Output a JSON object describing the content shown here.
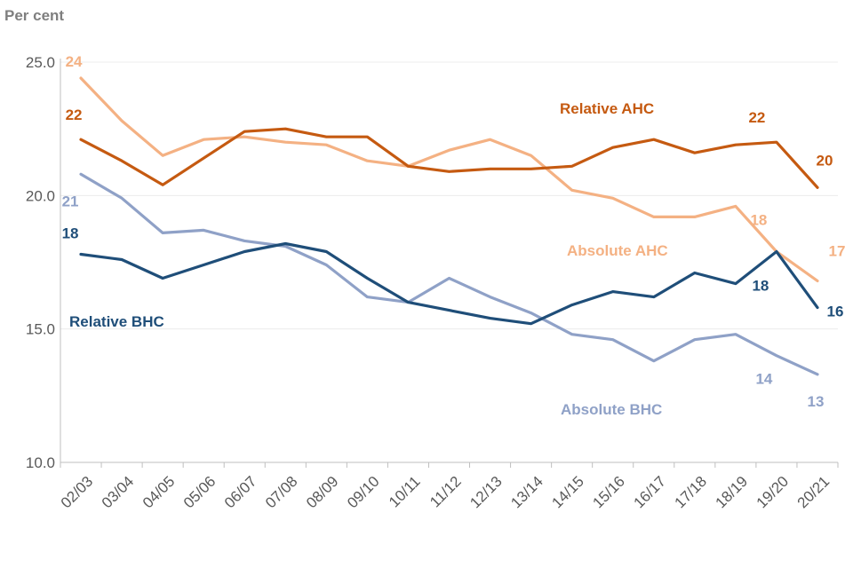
{
  "chart_data": {
    "type": "line",
    "title": "",
    "ylabel": "Per cent",
    "xlabel": "",
    "ylim": [
      10,
      25
    ],
    "yticks": [
      "10.0",
      "15.0",
      "20.0",
      "25.0"
    ],
    "yticks_values": [
      10,
      15,
      20,
      25
    ],
    "categories": [
      "02/03",
      "03/04",
      "04/05",
      "05/06",
      "06/07",
      "07/08",
      "08/09",
      "09/10",
      "10/11",
      "11/12",
      "12/13",
      "13/14",
      "14/15",
      "15/16",
      "16/17",
      "17/18",
      "18/19",
      "19/20",
      "20/21"
    ],
    "series": [
      {
        "name": "Relative AHC",
        "color": "#c55a11",
        "values": [
          22.1,
          21.3,
          20.4,
          21.4,
          22.4,
          22.5,
          22.2,
          22.2,
          21.1,
          20.9,
          21.0,
          21.0,
          21.1,
          21.8,
          22.1,
          21.6,
          21.9,
          22.0,
          20.3
        ],
        "annotations": [
          {
            "index": 0,
            "text": "22"
          },
          {
            "index": 17,
            "text": "22"
          },
          {
            "index": 18,
            "text": "20"
          }
        ]
      },
      {
        "name": "Absolute AHC",
        "color": "#f4b183",
        "values": [
          24.4,
          22.8,
          21.5,
          22.1,
          22.2,
          22.0,
          21.9,
          21.3,
          21.1,
          21.7,
          22.1,
          21.5,
          20.2,
          19.9,
          19.2,
          19.2,
          19.6,
          17.9,
          16.8
        ],
        "annotations": [
          {
            "index": 0,
            "text": "24"
          },
          {
            "index": 17,
            "text": "18"
          },
          {
            "index": 18,
            "text": "17"
          }
        ]
      },
      {
        "name": "Relative BHC",
        "color": "#1f4e79",
        "values": [
          17.8,
          17.6,
          16.9,
          17.4,
          17.9,
          18.2,
          17.9,
          16.9,
          16.0,
          15.7,
          15.4,
          15.2,
          15.9,
          16.4,
          16.2,
          17.1,
          16.7,
          17.9,
          15.8
        ],
        "annotations": [
          {
            "index": 0,
            "text": "18"
          },
          {
            "index": 17,
            "text": "18"
          },
          {
            "index": 18,
            "text": "16"
          }
        ]
      },
      {
        "name": "Absolute BHC",
        "color": "#8fa1c7",
        "values": [
          20.8,
          19.9,
          18.6,
          18.7,
          18.3,
          18.1,
          17.4,
          16.2,
          16.0,
          16.9,
          16.2,
          15.6,
          14.8,
          14.6,
          13.8,
          14.6,
          14.8,
          14.0,
          13.3
        ],
        "annotations": [
          {
            "index": 0,
            "text": "21"
          },
          {
            "index": 17,
            "text": "14"
          },
          {
            "index": 18,
            "text": "13"
          }
        ]
      }
    ],
    "grid": true,
    "legend": "inline series labels"
  }
}
